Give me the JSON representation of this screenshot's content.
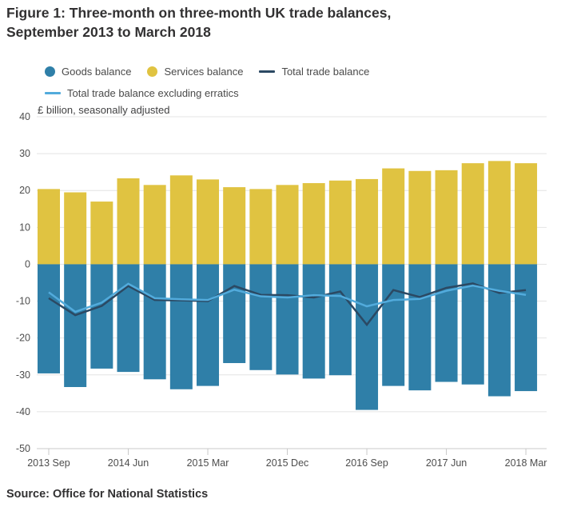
{
  "header": {
    "title": "Figure 1: Three-month on three-month UK trade balances, September 2013 to March 2018"
  },
  "unit_label": "£ billion, seasonally adjusted",
  "source": "Source: Office for National Statistics",
  "legend": [
    {
      "label": "Goods balance",
      "type": "dot",
      "color": "#2f7fa8"
    },
    {
      "label": "Services balance",
      "type": "dot",
      "color": "#e0c341"
    },
    {
      "label": "Total trade balance",
      "type": "line",
      "color": "#2b4963"
    },
    {
      "label": "Total trade balance excluding erratics",
      "type": "line",
      "color": "#52abdc"
    }
  ],
  "chart_data": {
    "type": "bar",
    "subtype": "stacked bars with line overlay",
    "title": "Figure 1: Three-month on three-month UK trade balances, September 2013 to March 2018",
    "xlabel": "",
    "ylabel": "£ billion, seasonally adjusted",
    "ylim": [
      -50,
      40
    ],
    "yticks": [
      40,
      30,
      20,
      10,
      0,
      -10,
      -20,
      -30,
      -40,
      -50
    ],
    "grid": true,
    "legend_position": "top",
    "categories": [
      "2013 Sep",
      "2013 Dec",
      "2014 Mar",
      "2014 Jun",
      "2014 Sep",
      "2014 Dec",
      "2015 Mar",
      "2015 Jun",
      "2015 Sep",
      "2015 Dec",
      "2016 Mar",
      "2016 Jun",
      "2016 Sep",
      "2016 Dec",
      "2017 Mar",
      "2017 Jun",
      "2017 Sep",
      "2017 Dec",
      "2018 Mar"
    ],
    "xticks": [
      {
        "index": 0,
        "label": "2013 Sep"
      },
      {
        "index": 3,
        "label": "2014 Jun"
      },
      {
        "index": 6,
        "label": "2015 Mar"
      },
      {
        "index": 9,
        "label": "2015 Dec"
      },
      {
        "index": 12,
        "label": "2016 Sep"
      },
      {
        "index": 15,
        "label": "2017 Jun"
      },
      {
        "index": 18,
        "label": "2018 Mar"
      }
    ],
    "series": [
      {
        "name": "Goods balance",
        "type": "bar",
        "color": "#2f7fa8",
        "values": [
          -29.6,
          -33.3,
          -28.3,
          -29.2,
          -31.2,
          -33.9,
          -33.0,
          -26.8,
          -28.7,
          -29.9,
          -31.0,
          -30.1,
          -39.5,
          -33.0,
          -34.2,
          -31.9,
          -32.6,
          -35.8,
          -34.4
        ]
      },
      {
        "name": "Services balance",
        "type": "bar",
        "color": "#e0c341",
        "values": [
          20.4,
          19.5,
          17.0,
          23.3,
          21.5,
          24.1,
          23.0,
          20.9,
          20.4,
          21.5,
          22.0,
          22.7,
          23.1,
          26.0,
          25.3,
          25.5,
          27.4,
          28.0,
          27.4
        ]
      },
      {
        "name": "Total trade balance",
        "type": "line",
        "color": "#2b4963",
        "values": [
          -9.2,
          -13.8,
          -11.3,
          -5.9,
          -9.7,
          -9.8,
          -10.0,
          -5.9,
          -8.3,
          -8.4,
          -9.0,
          -7.4,
          -16.4,
          -7.0,
          -8.9,
          -6.4,
          -5.2,
          -7.8,
          -7.0
        ]
      },
      {
        "name": "Total trade balance excluding erratics",
        "type": "line",
        "color": "#52abdc",
        "values": [
          -7.6,
          -12.9,
          -10.4,
          -5.3,
          -9.2,
          -9.5,
          -9.7,
          -6.9,
          -8.7,
          -9.0,
          -8.4,
          -8.6,
          -11.4,
          -9.7,
          -9.4,
          -7.2,
          -5.8,
          -7.2,
          -8.3
        ]
      }
    ],
    "colors": {
      "grid": "#e4e4e4",
      "axis": "#c9c9c9"
    }
  }
}
